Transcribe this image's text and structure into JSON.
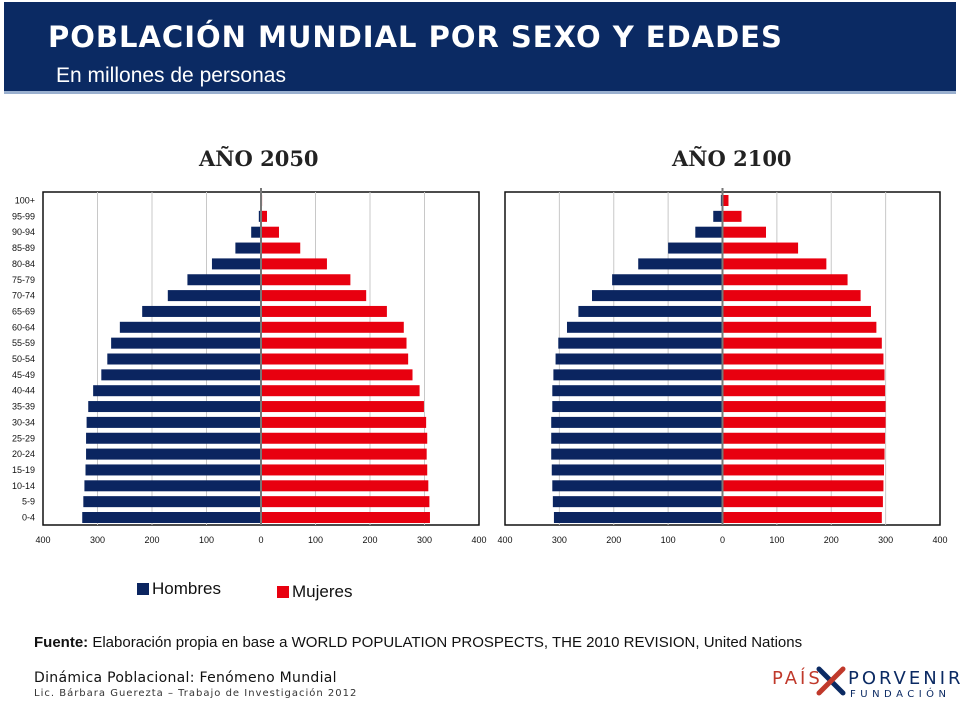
{
  "header": {
    "title": "POBLACIÓN MUNDIAL POR SEXO Y EDADES",
    "subtitle": "En millones de personas"
  },
  "colors": {
    "navy": "#0b2a63",
    "male": "#0b2560",
    "female": "#e8000f"
  },
  "legend": {
    "male_label": "Hombres",
    "female_label": "Mujeres"
  },
  "source": {
    "label": "Fuente:",
    "text": "Elaboración propia en base a  WORLD POPULATION PROSPECTS, THE 2010 REVISION, United Nations"
  },
  "footer": {
    "line1": "Dinámica Poblacional: Fenómeno Mundial",
    "line2": "Lic. Bárbara Guerezta – Trabajo de Investigación 2012"
  },
  "logo": {
    "word1": "PAÍS",
    "word2": "PORVENIR",
    "word3": "FUNDACIÓN"
  },
  "chart_data": [
    {
      "type": "bar",
      "orientation": "horizontal-pyramid",
      "title": "AÑO 2050",
      "categories": [
        "0-4",
        "5-9",
        "10-14",
        "15-19",
        "20-24",
        "25-29",
        "30-34",
        "35-39",
        "40-44",
        "45-49",
        "50-54",
        "55-59",
        "60-64",
        "65-69",
        "70-74",
        "75-79",
        "80-84",
        "85-89",
        "90-94",
        "95-99",
        "100+"
      ],
      "x_ticks": [
        "400",
        "300",
        "200",
        "100",
        "0",
        "100",
        "200",
        "300",
        "400"
      ],
      "xlim": [
        -400,
        400
      ],
      "grid": true,
      "series": [
        {
          "name": "Hombres",
          "values": [
            328,
            326,
            324,
            322,
            321,
            321,
            320,
            317,
            308,
            293,
            282,
            275,
            259,
            218,
            171,
            135,
            90,
            47,
            18,
            4,
            1
          ]
        },
        {
          "name": "Mujeres",
          "values": [
            310,
            309,
            307,
            305,
            304,
            305,
            303,
            299,
            291,
            278,
            270,
            267,
            262,
            231,
            193,
            164,
            121,
            72,
            33,
            11,
            2
          ]
        }
      ]
    },
    {
      "type": "bar",
      "orientation": "horizontal-pyramid",
      "title": "AÑO 2100",
      "categories": [
        "0-4",
        "5-9",
        "10-14",
        "15-19",
        "20-24",
        "25-29",
        "30-34",
        "35-39",
        "40-44",
        "45-49",
        "50-54",
        "55-59",
        "60-64",
        "65-69",
        "70-74",
        "75-79",
        "80-84",
        "85-89",
        "90-94",
        "95-99",
        "100+"
      ],
      "x_ticks": [
        "400",
        "300",
        "200",
        "100",
        "0",
        "100",
        "200",
        "300",
        "400"
      ],
      "xlim": [
        -400,
        400
      ],
      "grid": true,
      "series": [
        {
          "name": "Hombres",
          "values": [
            310,
            312,
            313,
            314,
            315,
            315,
            315,
            313,
            313,
            311,
            307,
            302,
            286,
            265,
            240,
            203,
            155,
            100,
            50,
            17,
            3
          ]
        },
        {
          "name": "Mujeres",
          "values": [
            293,
            295,
            296,
            297,
            298,
            299,
            300,
            300,
            299,
            298,
            296,
            293,
            283,
            273,
            254,
            230,
            191,
            139,
            80,
            35,
            11
          ]
        }
      ]
    }
  ]
}
